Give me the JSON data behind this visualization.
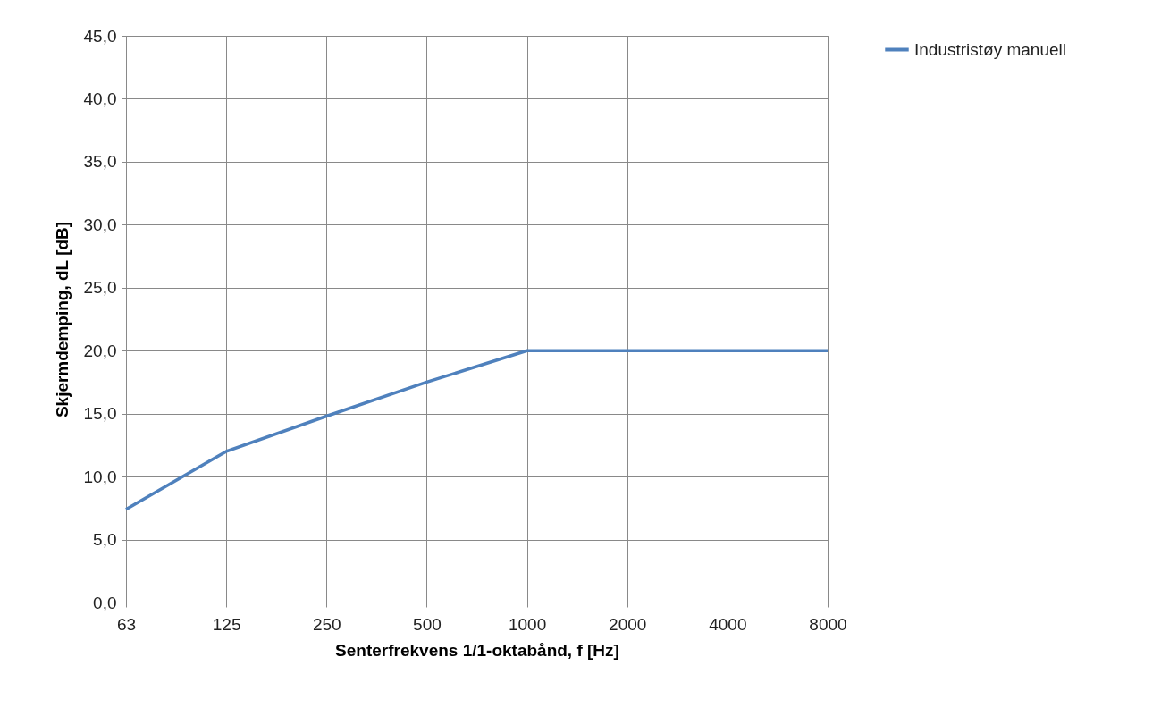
{
  "chart_data": {
    "type": "line",
    "xlabel": "Senterfrekvens 1/1-oktabånd, f [Hz]",
    "ylabel": "Skjermdemping, dL  [dB]",
    "categories": [
      "63",
      "125",
      "250",
      "500",
      "1000",
      "2000",
      "4000",
      "8000"
    ],
    "series": [
      {
        "name": "Industristøy manuell",
        "color": "#4f81bd",
        "values": [
          7.4,
          12.0,
          14.8,
          17.5,
          20.0,
          20.0,
          20.0,
          20.0
        ]
      }
    ],
    "ylim": [
      0,
      45
    ],
    "yticks": [
      {
        "value": 0,
        "label": "0,0"
      },
      {
        "value": 5,
        "label": "5,0"
      },
      {
        "value": 10,
        "label": "10,0"
      },
      {
        "value": 15,
        "label": "15,0"
      },
      {
        "value": 20,
        "label": "20,0"
      },
      {
        "value": 25,
        "label": "25,0"
      },
      {
        "value": 30,
        "label": "30,0"
      },
      {
        "value": 35,
        "label": "35,0"
      },
      {
        "value": 40,
        "label": "40,0"
      },
      {
        "value": 45,
        "label": "45,0"
      }
    ],
    "grid": true,
    "legend": "right",
    "marker": "none",
    "line_style": "solid"
  }
}
